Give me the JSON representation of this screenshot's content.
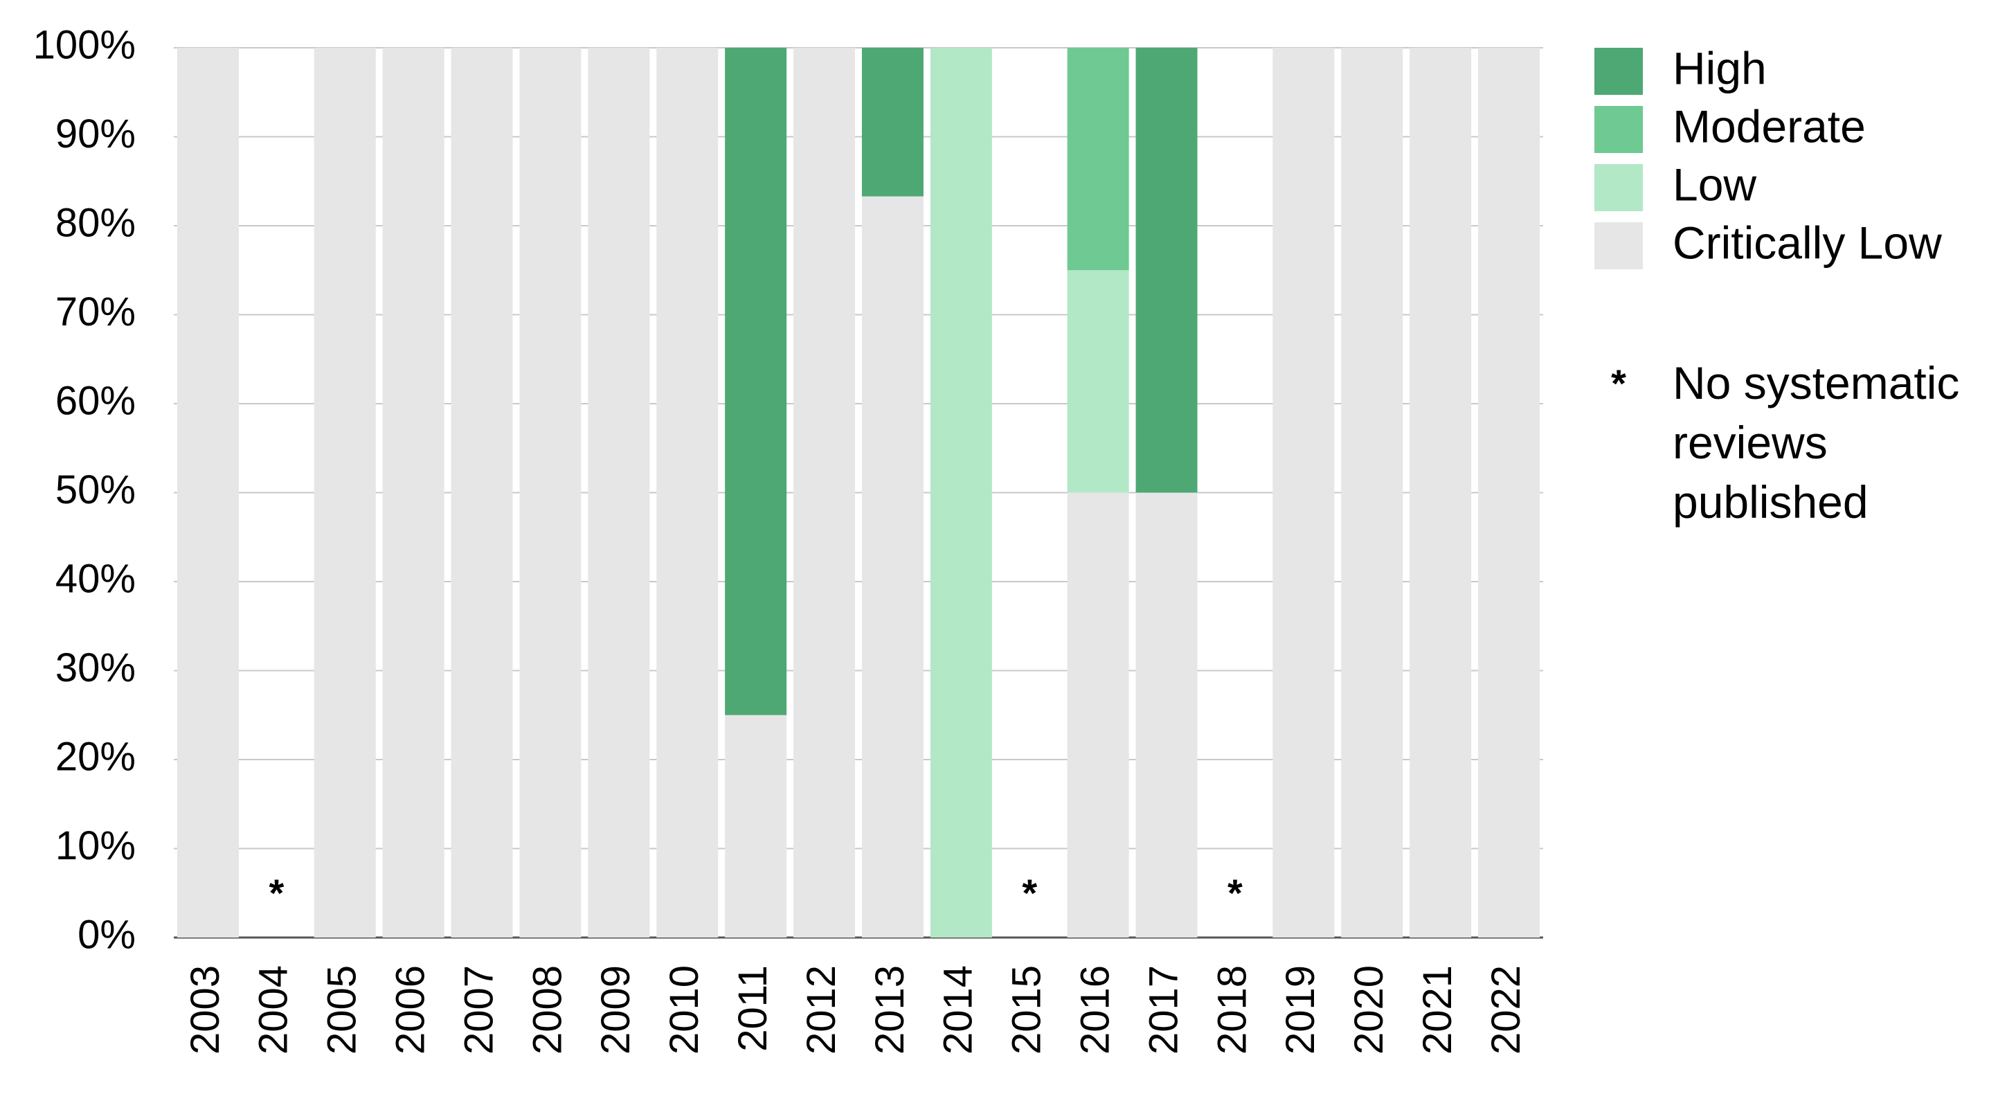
{
  "chart_data": {
    "type": "stacked_bar",
    "categories": [
      "2003",
      "2004",
      "2005",
      "2006",
      "2007",
      "2008",
      "2009",
      "2010",
      "2011",
      "2012",
      "2013",
      "2014",
      "2015",
      "2016",
      "2017",
      "2018",
      "2019",
      "2020",
      "2021",
      "2022"
    ],
    "series": [
      {
        "name": "High",
        "color": "#4ea874",
        "values": [
          0,
          null,
          0,
          0,
          0,
          0,
          0,
          0,
          75,
          0,
          16.7,
          0,
          null,
          0,
          50,
          null,
          0,
          0,
          0,
          0
        ]
      },
      {
        "name": "Moderate",
        "color": "#6ec993",
        "values": [
          0,
          null,
          0,
          0,
          0,
          0,
          0,
          0,
          0,
          0,
          0,
          0,
          null,
          25,
          0,
          null,
          0,
          0,
          0,
          0
        ]
      },
      {
        "name": "Low",
        "color": "#b2e8c6",
        "values": [
          0,
          null,
          0,
          0,
          0,
          0,
          0,
          0,
          0,
          0,
          0,
          100,
          null,
          25,
          0,
          null,
          0,
          0,
          0,
          0
        ]
      },
      {
        "name": "Critically Low",
        "color": "#e6e6e6",
        "values": [
          100,
          null,
          100,
          100,
          100,
          100,
          100,
          100,
          25,
          100,
          83.3,
          0,
          null,
          50,
          50,
          null,
          100,
          100,
          100,
          100
        ]
      }
    ],
    "note": {
      "symbol": "*",
      "label": "No systematic reviews published"
    },
    "ylim": [
      0,
      100
    ],
    "yticks": [
      {
        "value": 0,
        "label": "0%"
      },
      {
        "value": 10,
        "label": "10%"
      },
      {
        "value": 20,
        "label": "20%"
      },
      {
        "value": 30,
        "label": "30%"
      },
      {
        "value": 40,
        "label": "40%"
      },
      {
        "value": 50,
        "label": "50%"
      },
      {
        "value": 60,
        "label": "60%"
      },
      {
        "value": 70,
        "label": "70%"
      },
      {
        "value": 80,
        "label": "80%"
      },
      {
        "value": 90,
        "label": "90%"
      },
      {
        "value": 100,
        "label": "100%"
      }
    ],
    "grid": true,
    "legend": "right"
  }
}
